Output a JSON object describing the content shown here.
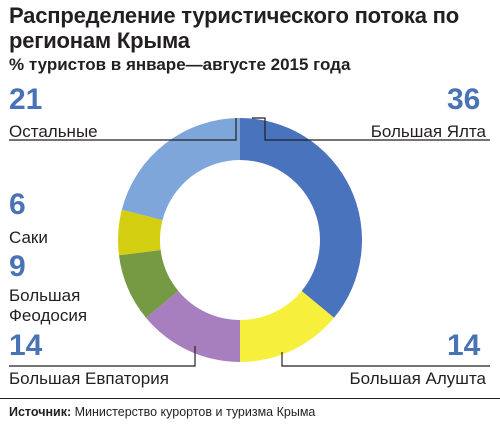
{
  "header": {
    "title": "Распределение туристического потока по регионам Крыма",
    "subtitle": "% туристов в январе—августе 2015 года"
  },
  "source": {
    "label": "Источник:",
    "text": "Министерство курортов и туризма Крыма"
  },
  "chart_data": {
    "type": "pie",
    "donut": true,
    "title": "Распределение туристического потока по регионам Крыма",
    "subtitle": "% туристов в январе—августе 2015 года",
    "categories": [
      "Большая Ялта",
      "Большая Алушта",
      "Большая Евпатория",
      "Большая Феодосия",
      "Саки",
      "Остальные"
    ],
    "values": [
      36,
      14,
      14,
      9,
      6,
      21
    ],
    "value_labels": [
      "36",
      "14",
      "14",
      "9",
      "6",
      "21"
    ],
    "colors": [
      "#4a73be",
      "#f6f03c",
      "#a77fbf",
      "#769a43",
      "#d3cf10",
      "#7ea6da"
    ],
    "value_color": "#4a73b5",
    "legend": "none"
  }
}
